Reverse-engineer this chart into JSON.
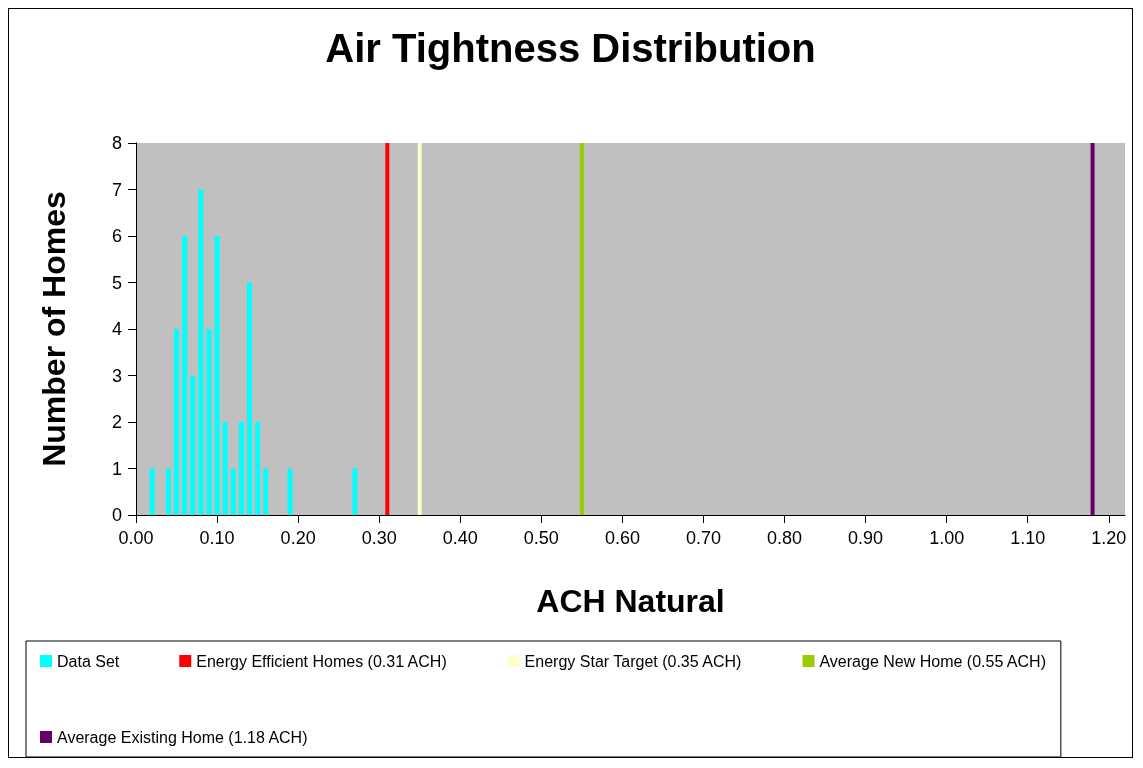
{
  "chart_data": {
    "type": "bar",
    "title": "Air Tightness Distribution",
    "xlabel": "ACH Natural",
    "ylabel": "Number of Homes",
    "x": [
      0.02,
      0.04,
      0.05,
      0.06,
      0.07,
      0.08,
      0.09,
      0.1,
      0.11,
      0.12,
      0.13,
      0.14,
      0.15,
      0.16,
      0.19,
      0.27
    ],
    "series": [
      {
        "name": "Data Set",
        "color": "#00ffff",
        "values": [
          1,
          1,
          4,
          6,
          3,
          7,
          4,
          6,
          2,
          1,
          2,
          5,
          2,
          1,
          1,
          1
        ]
      }
    ],
    "ref_lines": [
      {
        "axis": "x",
        "value": 0.31,
        "label": "Energy Efficient Homes (0.31 ACH)",
        "color": "#ff0000"
      },
      {
        "axis": "x",
        "value": 0.35,
        "label": "Energy Star Target (0.35 ACH)",
        "color": "#ffffcc"
      },
      {
        "axis": "x",
        "value": 0.55,
        "label": "Average New Home (0.55 ACH)",
        "color": "#99cc00"
      },
      {
        "axis": "x",
        "value": 1.18,
        "label": "Average Existing Home (1.18 ACH)",
        "color": "#660066"
      }
    ],
    "xlim": [
      0,
      1.22
    ],
    "xticks": [
      {
        "value": 0,
        "label": "0.00"
      },
      {
        "value": 0.1,
        "label": "0.10"
      },
      {
        "value": 0.2,
        "label": "0.20"
      },
      {
        "value": 0.3,
        "label": "0.30"
      },
      {
        "value": 0.4,
        "label": "0.40"
      },
      {
        "value": 0.5,
        "label": "0.50"
      },
      {
        "value": 0.6,
        "label": "0.60"
      },
      {
        "value": 0.7,
        "label": "0.70"
      },
      {
        "value": 0.8,
        "label": "0.80"
      },
      {
        "value": 0.9,
        "label": "0.90"
      },
      {
        "value": 1.0,
        "label": "1.00"
      },
      {
        "value": 1.1,
        "label": "1.10"
      },
      {
        "value": 1.2,
        "label": "1.20"
      }
    ],
    "ylim": [
      0,
      8
    ],
    "yticks": [
      0,
      1,
      2,
      3,
      4,
      5,
      6,
      7,
      8
    ],
    "grid": false,
    "legend": "bottom"
  }
}
